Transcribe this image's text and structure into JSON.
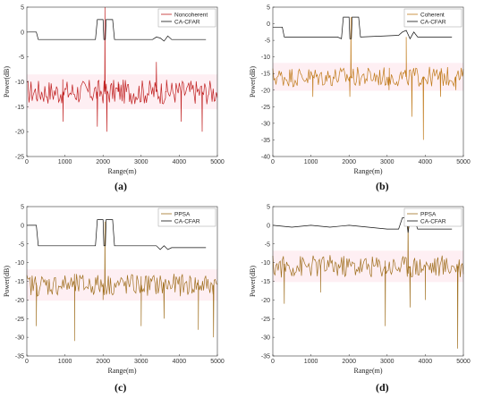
{
  "chart_data": [
    {
      "id": "a",
      "type": "line",
      "letter": "(a)",
      "xlabel": "Range(m)",
      "ylabel": "Power(dB)",
      "xlim": [
        0,
        5000
      ],
      "ylim": [
        -25,
        5
      ],
      "xticks": [
        0,
        1000,
        2000,
        3000,
        4000,
        5000
      ],
      "yticks": [
        -25,
        -20,
        -15,
        -10,
        -5,
        0,
        5
      ],
      "legend_position": "top-right",
      "series": [
        {
          "name": "Noncoherent",
          "color": "#c02020",
          "style": "noise",
          "x": [
            0,
            5000
          ],
          "y_mean": -12,
          "y_amp": 2.5,
          "spikes": [
            [
              950,
              -18
            ],
            [
              1850,
              -19
            ],
            [
              2050,
              5
            ],
            [
              2100,
              -20
            ],
            [
              2400,
              -10
            ],
            [
              3400,
              -6
            ],
            [
              3650,
              -12
            ],
            [
              4050,
              -18
            ],
            [
              4600,
              -20
            ]
          ]
        },
        {
          "name": "CA-CFAR",
          "color": "#111111",
          "style": "line",
          "x": [
            0,
            250,
            300,
            1700,
            1800,
            1850,
            2000,
            2020,
            2060,
            2080,
            2250,
            2300,
            3300,
            3400,
            3500,
            3600,
            3700,
            3800,
            4700
          ],
          "y": [
            0,
            0,
            -1.5,
            -1.5,
            -1.5,
            2.5,
            2.5,
            -1.5,
            -1.5,
            2.5,
            2.5,
            -1.5,
            -1.5,
            -1.0,
            -1.2,
            -1.8,
            -0.8,
            -1.5,
            -1.5
          ]
        }
      ]
    },
    {
      "id": "b",
      "type": "line",
      "letter": "(b)",
      "xlabel": "Range(m)",
      "ylabel": "Power(dB)",
      "xlim": [
        0,
        5000
      ],
      "ylim": [
        -40,
        5
      ],
      "xticks": [
        0,
        1000,
        2000,
        3000,
        4000,
        5000
      ],
      "yticks": [
        -40,
        -35,
        -30,
        -25,
        -20,
        -15,
        -10,
        -5,
        0,
        5
      ],
      "legend_position": "top-right",
      "series": [
        {
          "name": "Coherent",
          "color": "#c07a1a",
          "style": "noise",
          "x": [
            0,
            5000
          ],
          "y_mean": -16,
          "y_amp": 3,
          "spikes": [
            [
              1050,
              -22
            ],
            [
              2050,
              2
            ],
            [
              2020,
              -22
            ],
            [
              3050,
              -20
            ],
            [
              3500,
              -4
            ],
            [
              3650,
              -28
            ],
            [
              3950,
              -35
            ],
            [
              4400,
              -22
            ],
            [
              4800,
              -20
            ]
          ]
        },
        {
          "name": "CA-CFAR",
          "color": "#111111",
          "style": "line",
          "x": [
            0,
            250,
            300,
            1700,
            1800,
            1850,
            2000,
            2020,
            2060,
            2080,
            2250,
            2300,
            3300,
            3400,
            3500,
            3600,
            3700,
            3800,
            4700
          ],
          "y": [
            -1,
            -1,
            -4,
            -4,
            -4.5,
            2,
            2,
            -4.5,
            -4.5,
            2,
            2,
            -4,
            -3.5,
            -2.5,
            -2,
            -4.5,
            -2.5,
            -4,
            -4
          ]
        }
      ]
    },
    {
      "id": "c",
      "type": "line",
      "letter": "(c)",
      "xlabel": "Range(m)",
      "ylabel": "Power(dB)",
      "xlim": [
        0,
        5000
      ],
      "ylim": [
        -35,
        5
      ],
      "xticks": [
        0,
        1000,
        2000,
        3000,
        4000,
        5000
      ],
      "yticks": [
        -35,
        -30,
        -25,
        -20,
        -15,
        -10,
        -5,
        0,
        5
      ],
      "legend_position": "top-right",
      "series": [
        {
          "name": "PPSA",
          "color": "#a07020",
          "style": "noise",
          "x": [
            0,
            5000
          ],
          "y_mean": -16,
          "y_amp": 3,
          "spikes": [
            [
              250,
              -27
            ],
            [
              1250,
              -31
            ],
            [
              2050,
              1
            ],
            [
              2000,
              -20
            ],
            [
              3000,
              -27
            ],
            [
              3600,
              -25
            ],
            [
              4500,
              -28
            ],
            [
              4900,
              -30
            ]
          ]
        },
        {
          "name": "CA-CFAR",
          "color": "#111111",
          "style": "line",
          "x": [
            0,
            250,
            300,
            1700,
            1800,
            1850,
            2000,
            2020,
            2060,
            2080,
            2250,
            2300,
            3300,
            3400,
            3500,
            3600,
            3700,
            3800,
            4700
          ],
          "y": [
            0,
            0,
            -5.5,
            -5.5,
            -5.5,
            1.5,
            1.5,
            -5.5,
            -5.5,
            1.5,
            1.5,
            -5.5,
            -5.5,
            -5.5,
            -6.5,
            -5.5,
            -6.5,
            -6,
            -6
          ]
        }
      ]
    },
    {
      "id": "d",
      "type": "line",
      "letter": "(d)",
      "xlabel": "Range(m)",
      "ylabel": "Power(dB)",
      "xlim": [
        0,
        5000
      ],
      "ylim": [
        -35,
        5
      ],
      "xticks": [
        0,
        1000,
        2000,
        3000,
        4000,
        5000
      ],
      "yticks": [
        -35,
        -30,
        -25,
        -20,
        -15,
        -10,
        -5,
        0,
        5
      ],
      "legend_position": "top-right",
      "series": [
        {
          "name": "PPSA",
          "color": "#a07020",
          "style": "noise",
          "x": [
            0,
            5000
          ],
          "y_mean": -11,
          "y_amp": 3,
          "spikes": [
            [
              300,
              -21
            ],
            [
              1250,
              -18
            ],
            [
              2950,
              -27
            ],
            [
              3550,
              3
            ],
            [
              3600,
              -22
            ],
            [
              4000,
              -20
            ],
            [
              4850,
              -33
            ]
          ]
        },
        {
          "name": "CA-CFAR",
          "color": "#111111",
          "style": "line",
          "x": [
            0,
            500,
            1000,
            1500,
            2000,
            2500,
            3000,
            3300,
            3400,
            3500,
            3550,
            3600,
            3700,
            3800,
            4000,
            4500,
            4700
          ],
          "y": [
            0,
            -0.5,
            0,
            -0.5,
            0,
            -0.5,
            -1,
            -1,
            2,
            2,
            -2,
            2,
            2,
            -1,
            -1,
            -1,
            -1
          ]
        }
      ]
    }
  ]
}
